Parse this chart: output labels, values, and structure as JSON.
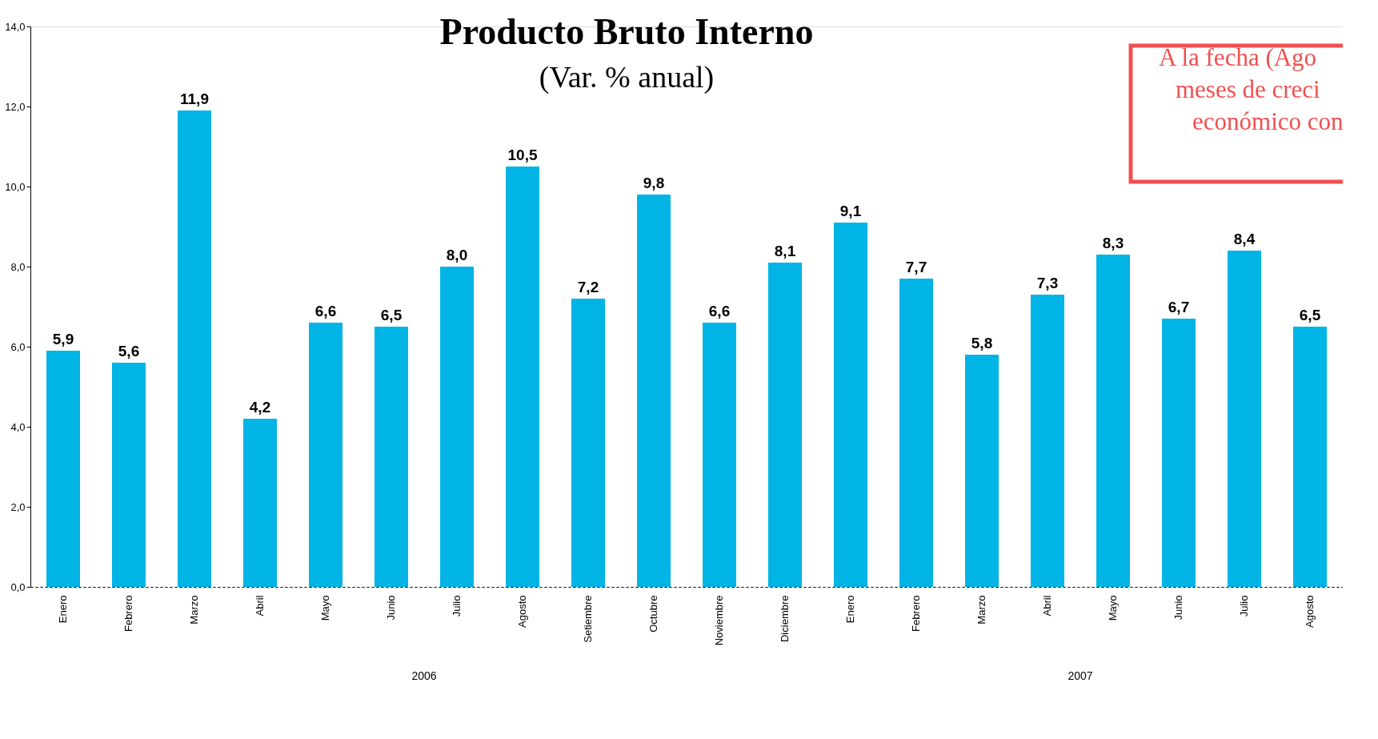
{
  "chart_data": {
    "type": "bar",
    "title": "Producto Bruto Interno",
    "subtitle": "(Var. % anual)",
    "categories": [
      "Enero",
      "Febrero",
      "Marzo",
      "Abril",
      "Mayo",
      "Junio",
      "Julio",
      "Agosto",
      "Setiembre",
      "Octubre",
      "Noviembre",
      "Diciembre",
      "Enero",
      "Febrero",
      "Marzo",
      "Abril",
      "Mayo",
      "Junio",
      "Julio",
      "Agosto"
    ],
    "values": [
      5.9,
      5.6,
      11.9,
      4.2,
      6.6,
      6.5,
      8.0,
      10.5,
      7.2,
      9.8,
      6.6,
      8.1,
      9.1,
      7.7,
      5.8,
      7.3,
      8.3,
      6.7,
      8.4,
      6.5
    ],
    "value_labels": [
      "5,9",
      "5,6",
      "11,9",
      "4,2",
      "6,6",
      "6,5",
      "8,0",
      "10,5",
      "7,2",
      "9,8",
      "6,6",
      "8,1",
      "9,1",
      "7,7",
      "5,8",
      "7,3",
      "8,3",
      "6,7",
      "8,4",
      "6,5"
    ],
    "color": "#00b4e6",
    "ylim": [
      0,
      14
    ],
    "yticks": [
      {
        "value": 0,
        "label": "0,0"
      },
      {
        "value": 2,
        "label": "2,0"
      },
      {
        "value": 4,
        "label": "4,0"
      },
      {
        "value": 6,
        "label": "6,0"
      },
      {
        "value": 8,
        "label": "8,0"
      },
      {
        "value": 10,
        "label": "10,0"
      },
      {
        "value": 12,
        "label": "12,0"
      },
      {
        "value": 14,
        "label": "14,0"
      }
    ],
    "grid": false,
    "annotations": [
      "2006",
      "2007",
      "A la fecha (Ago",
      "meses de creci",
      "económico con"
    ]
  }
}
